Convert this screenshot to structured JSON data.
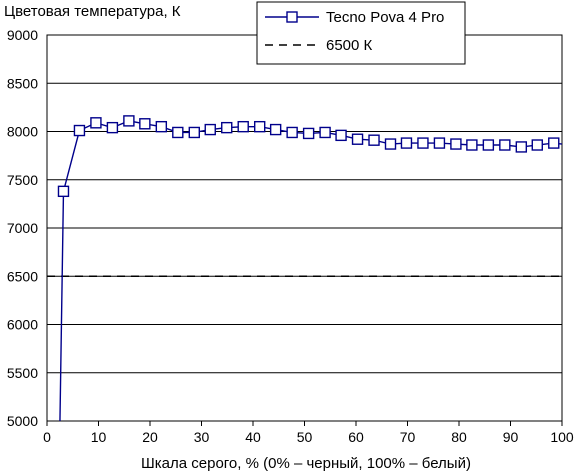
{
  "chart_data": {
    "type": "line",
    "ylabel": "Цветовая температура, К",
    "xlabel": "Шкала серого, % (0% – черный, 100% – белый)",
    "xlim": [
      0,
      100
    ],
    "ylim": [
      5000,
      9000
    ],
    "x_ticks": [
      "0",
      "10",
      "20",
      "30",
      "40",
      "50",
      "60",
      "70",
      "80",
      "90",
      "100"
    ],
    "y_ticks": [
      "5000",
      "5500",
      "6000",
      "6500",
      "7000",
      "7500",
      "8000",
      "8500",
      "9000"
    ],
    "grid": true,
    "legend_position": "top-right",
    "series": [
      {
        "name": "Tecno Pova 4 Pro",
        "color": "#00008b",
        "marker": "open-square",
        "x": [
          2.5,
          3.2,
          6.3,
          9.5,
          12.7,
          15.9,
          19.0,
          22.2,
          25.4,
          28.6,
          31.7,
          34.9,
          38.1,
          41.3,
          44.4,
          47.6,
          50.8,
          54.0,
          57.1,
          60.3,
          63.5,
          66.7,
          69.8,
          73.0,
          76.2,
          79.4,
          82.5,
          85.7,
          88.9,
          92.1,
          95.2,
          98.4,
          100
        ],
        "y": [
          4950,
          7380,
          8010,
          8090,
          8040,
          8110,
          8080,
          8050,
          7990,
          7990,
          8020,
          8040,
          8050,
          8050,
          8020,
          7990,
          7980,
          7990,
          7960,
          7920,
          7910,
          7870,
          7880,
          7880,
          7880,
          7870,
          7860,
          7860,
          7860,
          7840,
          7860,
          7880,
          7870
        ],
        "marker_x": [
          3.2,
          6.3,
          9.5,
          12.7,
          15.9,
          19.0,
          22.2,
          25.4,
          28.6,
          31.7,
          34.9,
          38.1,
          41.3,
          44.4,
          47.6,
          50.8,
          54.0,
          57.1,
          60.3,
          63.5,
          66.7,
          69.8,
          73.0,
          76.2,
          79.4,
          82.5,
          85.7,
          88.9,
          92.1,
          95.2,
          98.4
        ]
      },
      {
        "name": "6500 К",
        "color": "#000000",
        "style": "dashed",
        "x": [
          0,
          100
        ],
        "y": [
          6500,
          6500
        ]
      }
    ]
  }
}
